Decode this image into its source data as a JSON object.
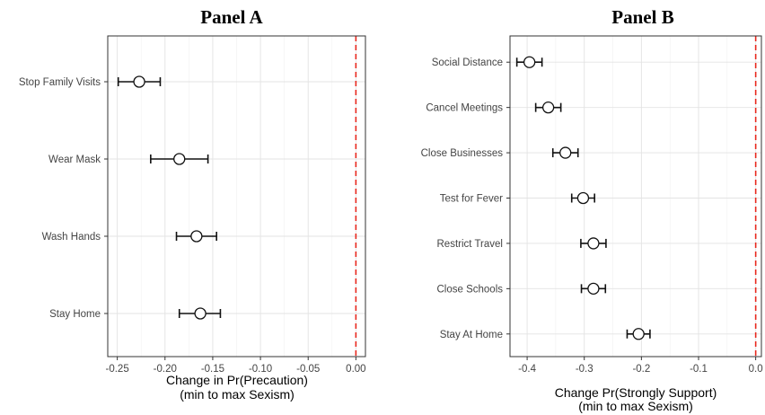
{
  "chart_data": [
    {
      "type": "scatter",
      "title": "Panel A",
      "xlabel": "Change in Pr(Precaution)",
      "xlabel_sub": "(min to max Sexism)",
      "ylabel": "",
      "xlim": [
        -0.26,
        0.01
      ],
      "xticks": [
        -0.25,
        -0.2,
        -0.15,
        -0.1,
        -0.05,
        0.0
      ],
      "xtick_labels": [
        "-0.25",
        "-0.20",
        "-0.15",
        "-0.10",
        "-0.05",
        "0.00"
      ],
      "reference_line": 0.0,
      "grid": true,
      "categories": [
        "Stop Family Visits",
        "Wear Mask",
        "Wash Hands",
        "Stay Home"
      ],
      "estimates": [
        -0.227,
        -0.185,
        -0.167,
        -0.163
      ],
      "ci_low": [
        -0.249,
        -0.215,
        -0.188,
        -0.185
      ],
      "ci_high": [
        -0.205,
        -0.155,
        -0.146,
        -0.142
      ]
    },
    {
      "type": "scatter",
      "title": "Panel B",
      "xlabel": "Change Pr(Strongly Support)",
      "xlabel_sub": "(min to max Sexism)",
      "ylabel": "",
      "xlim": [
        -0.43,
        0.01
      ],
      "xticks": [
        -0.4,
        -0.3,
        -0.2,
        -0.1,
        0.0
      ],
      "xtick_labels": [
        "-0.4",
        "-0.3",
        "-0.2",
        "-0.1",
        "0.0"
      ],
      "reference_line": 0.0,
      "grid": true,
      "categories": [
        "Social Distance",
        "Cancel Meetings",
        "Close Businesses",
        "Test for Fever",
        "Restrict Travel",
        "Close Schools",
        "Stay At Home"
      ],
      "estimates": [
        -0.396,
        -0.363,
        -0.333,
        -0.302,
        -0.284,
        -0.284,
        -0.205
      ],
      "ci_low": [
        -0.418,
        -0.385,
        -0.355,
        -0.322,
        -0.306,
        -0.305,
        -0.225
      ],
      "ci_high": [
        -0.374,
        -0.341,
        -0.311,
        -0.282,
        -0.262,
        -0.263,
        -0.185
      ]
    }
  ]
}
